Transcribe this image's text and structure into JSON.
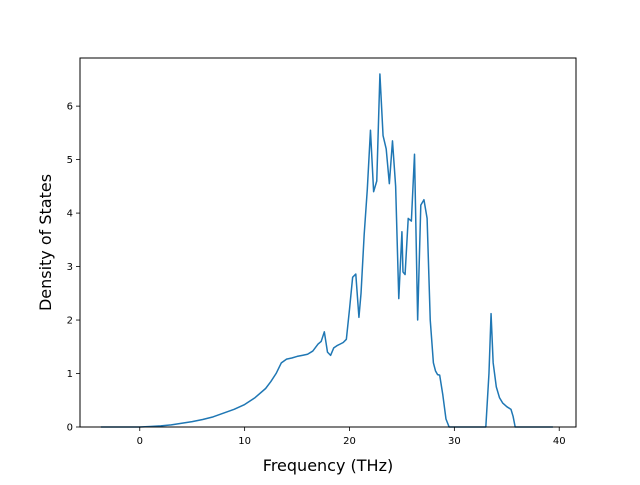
{
  "chart_data": {
    "type": "line",
    "title": "",
    "xlabel": "Frequency (THz)",
    "ylabel": "Density of States",
    "xlim": [
      -5.7,
      41.6
    ],
    "ylim": [
      0,
      6.9
    ],
    "xticks": [
      0,
      10,
      20,
      30,
      40
    ],
    "yticks": [
      0,
      1,
      2,
      3,
      4,
      5,
      6
    ],
    "grid": false,
    "legend": "none",
    "line_color": "#1f77b4",
    "series": [
      {
        "x": [
          -3.7,
          -2,
          0,
          1,
          2,
          3,
          4,
          5,
          6,
          7,
          8,
          9,
          10,
          11,
          12,
          12.5,
          13,
          13.5,
          14,
          14.5,
          15,
          15.5,
          16,
          16.5,
          17,
          17.3,
          17.6,
          17.9,
          18.2,
          18.5,
          18.8,
          19.1,
          19.4,
          19.7,
          20,
          20.3,
          20.6,
          20.9,
          21.1,
          21.4,
          21.7,
          22,
          22.3,
          22.6,
          22.9,
          23.2,
          23.5,
          23.8,
          24.1,
          24.4,
          24.7,
          25,
          25.1,
          25.3,
          25.6,
          25.9,
          26.2,
          26.5,
          26.8,
          27.1,
          27.4,
          27.7,
          28,
          28.2,
          28.4,
          28.6,
          28.9,
          29.2,
          29.5,
          29.8,
          30.2,
          31,
          32,
          33,
          33.3,
          33.5,
          33.7,
          34,
          34.3,
          34.6,
          35,
          35.4,
          35.6,
          35.8,
          36.2,
          37,
          39.4
        ],
        "y": [
          0,
          0,
          0,
          0.01,
          0.02,
          0.04,
          0.07,
          0.1,
          0.14,
          0.19,
          0.26,
          0.33,
          0.42,
          0.55,
          0.72,
          0.85,
          1.0,
          1.2,
          1.27,
          1.29,
          1.32,
          1.34,
          1.36,
          1.42,
          1.55,
          1.6,
          1.78,
          1.4,
          1.34,
          1.48,
          1.52,
          1.55,
          1.58,
          1.64,
          2.2,
          2.8,
          2.86,
          2.05,
          2.5,
          3.6,
          4.45,
          5.55,
          4.4,
          4.6,
          6.6,
          5.45,
          5.2,
          4.55,
          5.35,
          4.5,
          2.4,
          3.65,
          2.9,
          2.85,
          3.9,
          3.85,
          5.1,
          2.0,
          4.15,
          4.25,
          3.9,
          2.0,
          1.2,
          1.05,
          0.98,
          0.97,
          0.6,
          0.15,
          0,
          0,
          0,
          0,
          0,
          0,
          1.0,
          2.12,
          1.2,
          0.75,
          0.55,
          0.45,
          0.38,
          0.33,
          0.2,
          0,
          0,
          0,
          0
        ]
      }
    ]
  }
}
